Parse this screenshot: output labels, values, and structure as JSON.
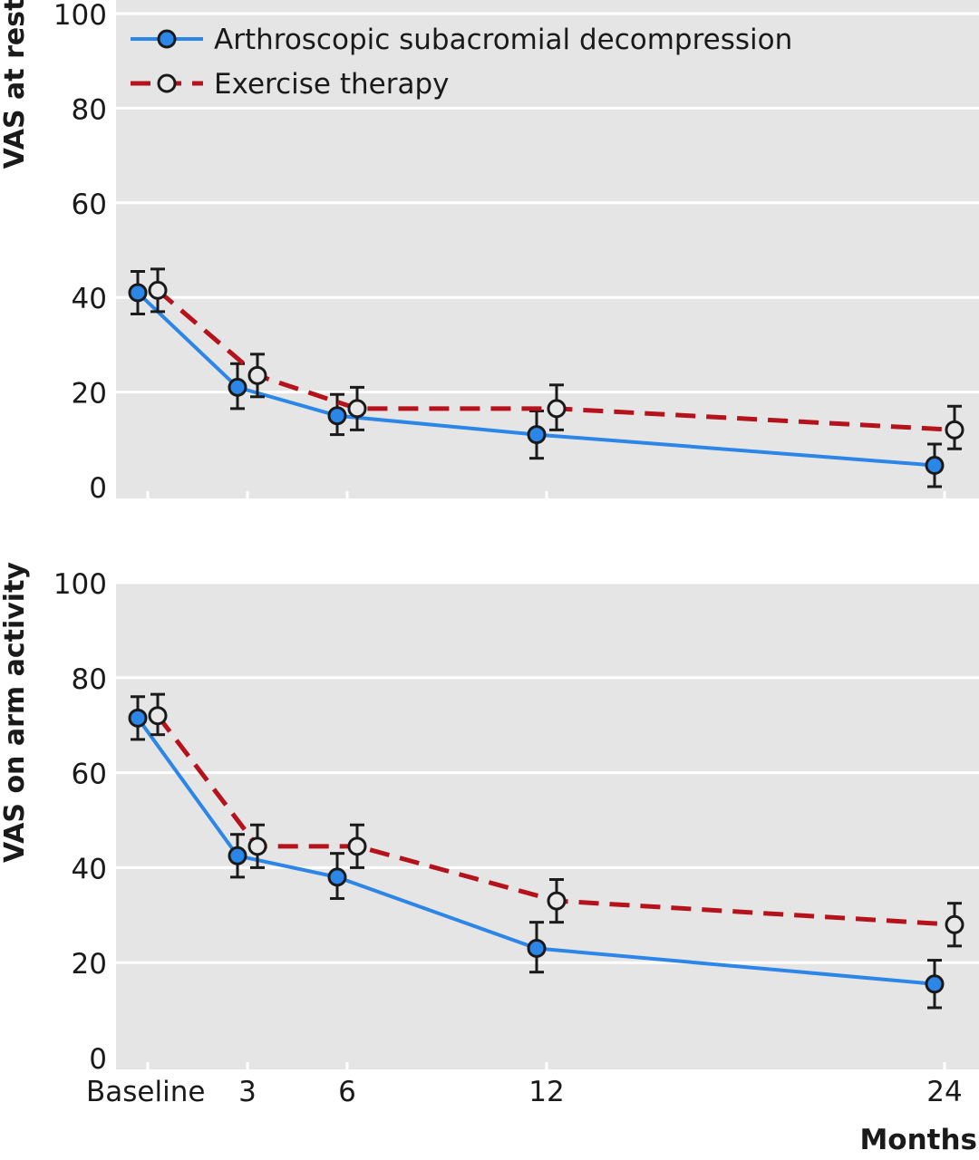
{
  "chart_data": {
    "type": "line",
    "x": [
      0,
      3,
      6,
      12,
      24
    ],
    "x_tick_labels": [
      "Baseline",
      "3",
      "6",
      "12",
      "24"
    ],
    "xlabel": "Months",
    "legend": [
      {
        "name": "Arthroscopic subacromial decompression",
        "color": "#2b86e8",
        "style": "solid",
        "marker": "filled-circle"
      },
      {
        "name": "Exercise therapy",
        "color": "#b5121b",
        "style": "dashed",
        "marker": "open-circle"
      }
    ],
    "legend_position": "top-left",
    "grid": true,
    "panels": [
      {
        "ylabel": "VAS at rest",
        "ylim": [
          0,
          100
        ],
        "yticks": [
          0,
          20,
          40,
          60,
          80,
          100
        ],
        "series": [
          {
            "name": "Arthroscopic subacromial decompression",
            "values": [
              41,
              21,
              15,
              11,
              4.5
            ],
            "ci_low": [
              36.5,
              16.5,
              11,
              6,
              0
            ],
            "ci_high": [
              45.5,
              26,
              19.5,
              16,
              9
            ]
          },
          {
            "name": "Exercise therapy",
            "values": [
              41.5,
              23.5,
              16.5,
              16.5,
              12
            ],
            "ci_low": [
              37,
              19,
              12,
              12,
              8
            ],
            "ci_high": [
              46,
              28,
              21,
              21.5,
              17
            ]
          }
        ]
      },
      {
        "ylabel": "VAS on arm activity",
        "ylim": [
          0,
          100
        ],
        "yticks": [
          0,
          20,
          40,
          60,
          80,
          100
        ],
        "series": [
          {
            "name": "Arthroscopic subacromial decompression",
            "values": [
              71.5,
              42.5,
              38,
              23,
              15.5
            ],
            "ci_low": [
              67,
              38,
              33.5,
              18,
              10.5
            ],
            "ci_high": [
              76,
              47,
              43,
              28.5,
              20.5
            ]
          },
          {
            "name": "Exercise therapy",
            "values": [
              72,
              44.5,
              44.5,
              33,
              28
            ],
            "ci_low": [
              68,
              40,
              40,
              28.5,
              23.5
            ],
            "ci_high": [
              76.5,
              49,
              49,
              37.5,
              32.5
            ]
          }
        ]
      }
    ]
  },
  "colors": {
    "panel_bg": "#e5e5e5",
    "grid": "#ffffff",
    "asd": "#2b86e8",
    "exercise": "#b5121b",
    "marker_stroke": "#1a1a1a",
    "open_marker_fill": "#e8e8e8"
  }
}
